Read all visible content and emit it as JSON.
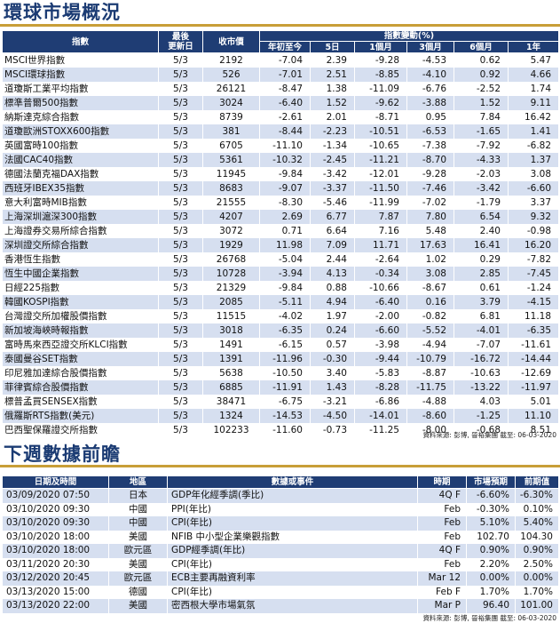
{
  "section1": {
    "title": "環球市場概況",
    "headers": {
      "index": "指數",
      "updated_line1": "最後",
      "updated_line2": "更新日",
      "close": "收市價",
      "change_group": "指數變動(%)",
      "ytd": "年初至今",
      "d5": "5日",
      "m1": "1個月",
      "m3": "3個月",
      "m6": "6個月",
      "y1": "1年"
    },
    "rows": [
      [
        "MSCI世界指數",
        "5/3",
        "2192",
        "-7.04",
        "2.39",
        "-9.28",
        "-4.53",
        "0.62",
        "5.47"
      ],
      [
        "MSCI環球指數",
        "5/3",
        "526",
        "-7.01",
        "2.51",
        "-8.85",
        "-4.10",
        "0.92",
        "4.66"
      ],
      [
        "道瓊斯工業平均指數",
        "5/3",
        "26121",
        "-8.47",
        "1.38",
        "-11.09",
        "-6.76",
        "-2.52",
        "1.74"
      ],
      [
        "標準普爾500指數",
        "5/3",
        "3024",
        "-6.40",
        "1.52",
        "-9.62",
        "-3.88",
        "1.52",
        "9.11"
      ],
      [
        "納斯達克綜合指數",
        "5/3",
        "8739",
        "-2.61",
        "2.01",
        "-8.71",
        "0.95",
        "7.84",
        "16.42"
      ],
      [
        "道瓊歐洲STOXX600指數",
        "5/3",
        "381",
        "-8.44",
        "-2.23",
        "-10.51",
        "-6.53",
        "-1.65",
        "1.41"
      ],
      [
        "英國富時100指數",
        "5/3",
        "6705",
        "-11.10",
        "-1.34",
        "-10.65",
        "-7.38",
        "-7.92",
        "-6.82"
      ],
      [
        "法國CAC40指數",
        "5/3",
        "5361",
        "-10.32",
        "-2.45",
        "-11.21",
        "-8.70",
        "-4.33",
        "1.37"
      ],
      [
        "德國法蘭克福DAX指數",
        "5/3",
        "11945",
        "-9.84",
        "-3.42",
        "-12.01",
        "-9.28",
        "-2.03",
        "3.08"
      ],
      [
        "西班牙IBEX35指數",
        "5/3",
        "8683",
        "-9.07",
        "-3.37",
        "-11.50",
        "-7.46",
        "-3.42",
        "-6.60"
      ],
      [
        "意大利富時MIB指數",
        "5/3",
        "21555",
        "-8.30",
        "-5.46",
        "-11.99",
        "-7.02",
        "-1.79",
        "3.37"
      ],
      [
        "上海深圳滬深300指數",
        "5/3",
        "4207",
        "2.69",
        "6.77",
        "7.87",
        "7.80",
        "6.54",
        "9.32"
      ],
      [
        "上海證券交易所綜合指數",
        "5/3",
        "3072",
        "0.71",
        "6.64",
        "7.16",
        "5.48",
        "2.40",
        "-0.98"
      ],
      [
        "深圳證交所綜合指數",
        "5/3",
        "1929",
        "11.98",
        "7.09",
        "11.71",
        "17.63",
        "16.41",
        "16.20"
      ],
      [
        "香港恆生指數",
        "5/3",
        "26768",
        "-5.04",
        "2.44",
        "-2.64",
        "1.02",
        "0.29",
        "-7.82"
      ],
      [
        "恆生中國企業指數",
        "5/3",
        "10728",
        "-3.94",
        "4.13",
        "-0.34",
        "3.08",
        "2.85",
        "-7.45"
      ],
      [
        "日經225指數",
        "5/3",
        "21329",
        "-9.84",
        "0.88",
        "-10.66",
        "-8.67",
        "0.61",
        "-1.24"
      ],
      [
        "韓國KOSPI指數",
        "5/3",
        "2085",
        "-5.11",
        "4.94",
        "-6.40",
        "0.16",
        "3.79",
        "-4.15"
      ],
      [
        "台灣證交所加權股價指數",
        "5/3",
        "11515",
        "-4.02",
        "1.97",
        "-2.00",
        "-0.82",
        "6.81",
        "11.18"
      ],
      [
        "新加坡海峽時報指數",
        "5/3",
        "3018",
        "-6.35",
        "0.24",
        "-6.60",
        "-5.52",
        "-4.01",
        "-6.35"
      ],
      [
        "富時馬來西亞證交所KLCI指數",
        "5/3",
        "1491",
        "-6.15",
        "0.57",
        "-3.98",
        "-4.94",
        "-7.07",
        "-11.61"
      ],
      [
        "泰國曼谷SET指數",
        "5/3",
        "1391",
        "-11.96",
        "-0.30",
        "-9.44",
        "-10.79",
        "-16.72",
        "-14.44"
      ],
      [
        "印尼雅加達綜合股價指數",
        "5/3",
        "5638",
        "-10.50",
        "3.40",
        "-5.83",
        "-8.87",
        "-10.63",
        "-12.69"
      ],
      [
        "菲律賓綜合股價指數",
        "5/3",
        "6885",
        "-11.91",
        "1.43",
        "-8.28",
        "-11.75",
        "-13.22",
        "-11.97"
      ],
      [
        "標普孟買SENSEX指數",
        "5/3",
        "38471",
        "-6.75",
        "-3.21",
        "-6.86",
        "-4.88",
        "4.03",
        "5.01"
      ],
      [
        "俄羅斯RTS指數(美元)",
        "5/3",
        "1324",
        "-14.53",
        "-4.50",
        "-14.01",
        "-8.60",
        "-1.25",
        "11.10"
      ],
      [
        "巴西聖保羅證交所指數",
        "5/3",
        "102233",
        "-11.60",
        "-0.73",
        "-11.25",
        "-8.00",
        "-0.68",
        "8.51"
      ]
    ],
    "source": "資料來源: 彭博, 晉裕集團 截至: 06-03-2020"
  },
  "section2": {
    "title": "下週數據前瞻",
    "headers": {
      "datetime": "日期及時間",
      "region": "地區",
      "event": "數據或事件",
      "period": "時期",
      "forecast": "市場預期",
      "previous": "前期值"
    },
    "rows": [
      [
        "03/09/2020 07:50",
        "日本",
        "GDP年化經季調(季比)",
        "4Q F",
        "-6.60%",
        "-6.30%"
      ],
      [
        "03/10/2020 09:30",
        "中國",
        "PPI(年比)",
        "Feb",
        "-0.30%",
        "0.10%"
      ],
      [
        "03/10/2020 09:30",
        "中國",
        "CPI(年比)",
        "Feb",
        "5.10%",
        "5.40%"
      ],
      [
        "03/10/2020 18:00",
        "美國",
        "NFIB 中小型企業樂觀指數",
        "Feb",
        "102.70",
        "104.30"
      ],
      [
        "03/10/2020 18:00",
        "歐元區",
        "GDP經季調(年比)",
        "4Q F",
        "0.90%",
        "0.90%"
      ],
      [
        "03/11/2020 20:30",
        "美國",
        "CPI(年比)",
        "Feb",
        "2.20%",
        "2.50%"
      ],
      [
        "03/12/2020 20:45",
        "歐元區",
        "ECB主要再融資利率",
        "Mar 12",
        "0.00%",
        "0.00%"
      ],
      [
        "03/13/2020 15:00",
        "德國",
        "CPI(年比)",
        "Feb F",
        "1.70%",
        "1.70%"
      ],
      [
        "03/13/2020 22:00",
        "美國",
        "密西根大學市場氣氛",
        "Mar P",
        "96.40",
        "101.00"
      ]
    ],
    "source": "資料來源: 彭博, 晉裕集團 截至: 06-03-2020"
  }
}
